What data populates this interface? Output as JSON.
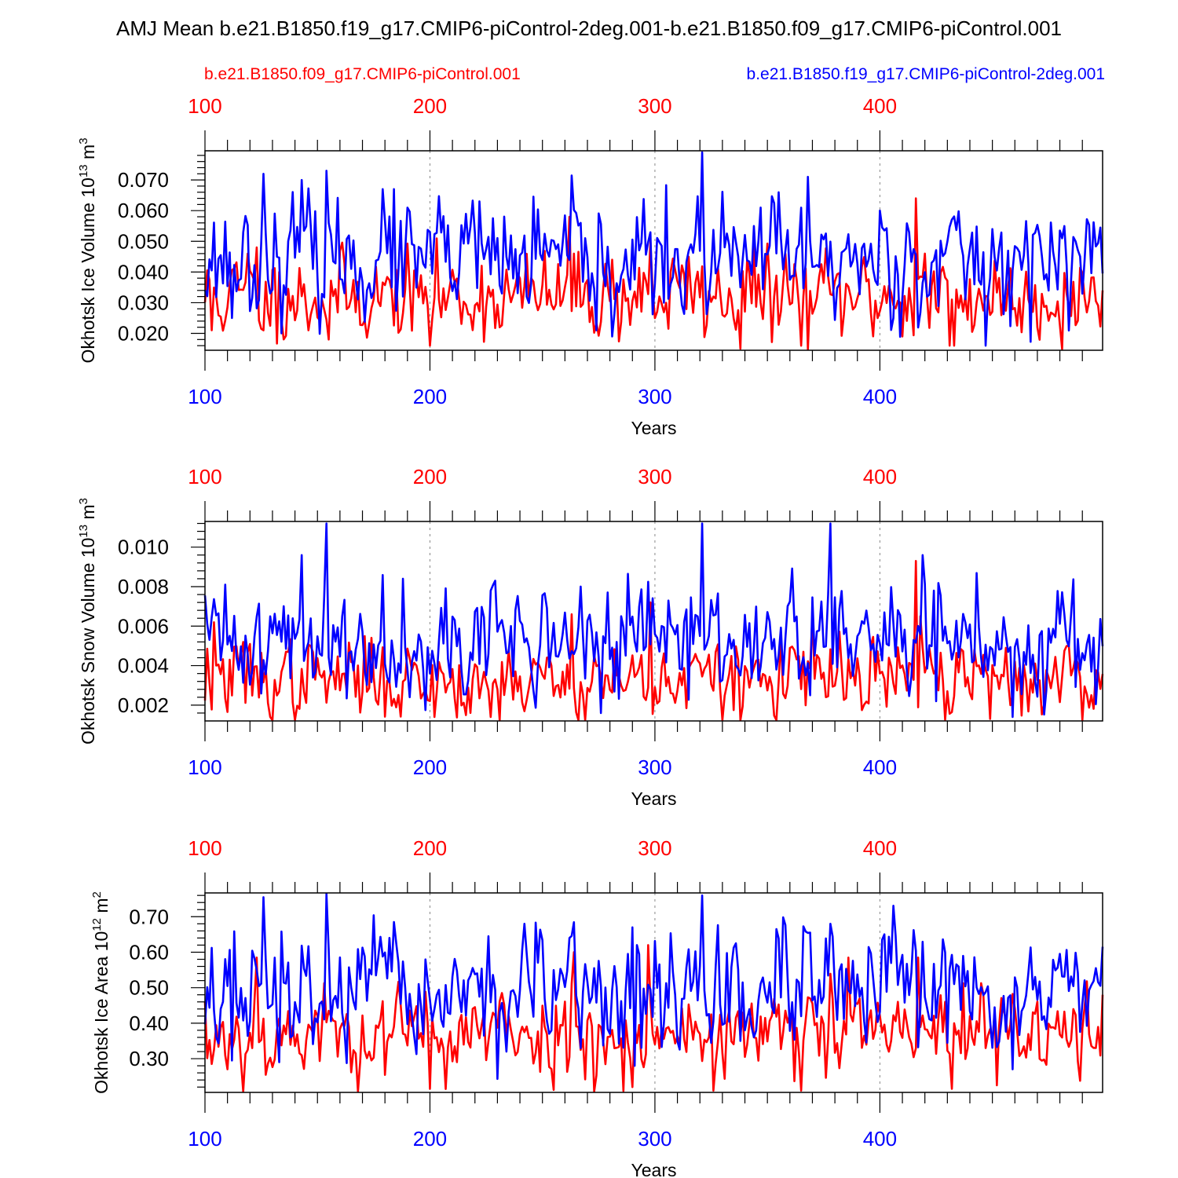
{
  "title": "AMJ Mean b.e21.B1850.f19_g17.CMIP6-piControl-2deg.001-b.e21.B1850.f09_g17.CMIP6-piControl.001",
  "legend": {
    "red_label": "b.e21.B1850.f09_g17.CMIP6-piControl.001",
    "blue_label": "b.e21.B1850.f19_g17.CMIP6-piControl-2deg.001"
  },
  "colors": {
    "red": "#ff0000",
    "blue": "#0000ff",
    "axis": "#000000",
    "grid": "#888888"
  },
  "xlabel": "Years",
  "chart_data": [
    {
      "type": "line",
      "id": "ice-volume",
      "ylabel_main": "Okhotsk Ice Volume 10",
      "ylabel_exp": "13",
      "ylabel_unit": " m",
      "ylabel_unit_exp": "3",
      "xlabel": "Years",
      "xlim": [
        100,
        499
      ],
      "ylim": [
        0.0145,
        0.0795
      ],
      "xticks": [
        100,
        200,
        300,
        400
      ],
      "yticks": [
        0.02,
        0.03,
        0.04,
        0.05,
        0.06,
        0.07
      ],
      "ytick_labels": [
        "0.020",
        "0.030",
        "0.040",
        "0.050",
        "0.060",
        "0.070"
      ],
      "series": [
        {
          "name": "b.e21.B1850.f09_g17.CMIP6-piControl.001",
          "color": "red",
          "base": 0.032,
          "sd": 0.0072,
          "seed": 11,
          "peaks": [
            [
              119,
              0.046
            ],
            [
              123,
              0.048
            ],
            [
              133,
              0.04
            ],
            [
              262,
              0.058
            ],
            [
              281,
              0.044
            ],
            [
              298,
              0.05
            ],
            [
              315,
              0.045
            ],
            [
              341,
              0.044
            ],
            [
              358,
              0.046
            ],
            [
              416,
              0.064
            ],
            [
              420,
              0.046
            ]
          ],
          "troughs": [
            [
              103,
              0.021
            ],
            [
              126,
              0.021
            ],
            [
              155,
              0.018
            ],
            [
              200,
              0.016
            ],
            [
              338,
              0.015
            ],
            [
              365,
              0.016
            ],
            [
              431,
              0.016
            ],
            [
              433,
              0.016
            ]
          ]
        },
        {
          "name": "b.e21.B1850.f19_g17.CMIP6-piControl-2deg.001",
          "color": "blue",
          "base": 0.044,
          "sd": 0.0092,
          "seed": 23,
          "peaks": [
            [
              126,
              0.072
            ],
            [
              143,
              0.07
            ],
            [
              154,
              0.073
            ],
            [
              184,
              0.067
            ],
            [
              222,
              0.063
            ],
            [
              321,
              0.079
            ],
            [
              347,
              0.061
            ],
            [
              355,
              0.066
            ],
            [
              368,
              0.071
            ],
            [
              400,
              0.06
            ]
          ],
          "troughs": [
            [
              112,
              0.025
            ],
            [
              188,
              0.032
            ],
            [
              232,
              0.033
            ],
            [
              274,
              0.021
            ],
            [
              281,
              0.019
            ],
            [
              304,
              0.03
            ],
            [
              338,
              0.035
            ],
            [
              447,
              0.016
            ]
          ]
        }
      ]
    },
    {
      "type": "line",
      "id": "snow-volume",
      "ylabel_main": "Okhotsk Snow Volume 10",
      "ylabel_exp": "13",
      "ylabel_unit": " m",
      "ylabel_unit_exp": "3",
      "xlabel": "Years",
      "xlim": [
        100,
        499
      ],
      "ylim": [
        0.0012,
        0.0113
      ],
      "xticks": [
        100,
        200,
        300,
        400
      ],
      "yticks": [
        0.002,
        0.004,
        0.006,
        0.008,
        0.01
      ],
      "ytick_labels": [
        "0.002",
        "0.004",
        "0.006",
        "0.008",
        "0.010"
      ],
      "series": [
        {
          "name": "b.e21.B1850.f09_g17.CMIP6-piControl.001",
          "color": "red",
          "base": 0.0033,
          "sd": 0.001,
          "seed": 37,
          "peaks": [
            [
              104,
              0.0062
            ],
            [
              117,
              0.0052
            ],
            [
              263,
              0.0066
            ],
            [
              298,
              0.0072
            ],
            [
              370,
              0.0066
            ],
            [
              416,
              0.0093
            ],
            [
              418,
              0.0065
            ]
          ],
          "troughs": [
            [
              129,
              0.0014
            ],
            [
              202,
              0.0014
            ],
            [
              227,
              0.0014
            ],
            [
              338,
              0.0012
            ],
            [
              449,
              0.0013
            ]
          ]
        },
        {
          "name": "b.e21.B1850.f19_g17.CMIP6-piControl-2deg.001",
          "color": "blue",
          "base": 0.0053,
          "sd": 0.0014,
          "seed": 41,
          "peaks": [
            [
              109,
              0.0081
            ],
            [
              143,
              0.0096
            ],
            [
              154,
              0.0112
            ],
            [
              188,
              0.0084
            ],
            [
              229,
              0.0083
            ],
            [
              321,
              0.0112
            ],
            [
              378,
              0.0112
            ],
            [
              419,
              0.0096
            ]
          ],
          "troughs": [
            [
              148,
              0.0034
            ],
            [
              276,
              0.0016
            ],
            [
              369,
              0.0025
            ],
            [
              425,
              0.0022
            ],
            [
              459,
              0.0014
            ]
          ]
        }
      ]
    },
    {
      "type": "line",
      "id": "ice-area",
      "ylabel_main": "Okhotsk Ice Area 10",
      "ylabel_exp": "12",
      "ylabel_unit": " m",
      "ylabel_unit_exp": "2",
      "xlabel": "Years",
      "xlim": [
        100,
        499
      ],
      "ylim": [
        0.205,
        0.767
      ],
      "xticks": [
        100,
        200,
        300,
        400
      ],
      "yticks": [
        0.3,
        0.4,
        0.5,
        0.6,
        0.7
      ],
      "ytick_labels": [
        "0.30",
        "0.40",
        "0.50",
        "0.60",
        "0.70"
      ],
      "series": [
        {
          "name": "b.e21.B1850.f09_g17.CMIP6-piControl.001",
          "color": "red",
          "base": 0.37,
          "sd": 0.065,
          "seed": 53,
          "peaks": [
            [
              123,
              0.585
            ],
            [
              264,
              0.6
            ],
            [
              297,
              0.62
            ],
            [
              386,
              0.585
            ],
            [
              417,
              0.585
            ],
            [
              499,
              0.48
            ]
          ],
          "troughs": [
            [
              103,
              0.285
            ],
            [
              200,
              0.215
            ],
            [
              290,
              0.22
            ],
            [
              326,
              0.21
            ],
            [
              365,
              0.21
            ],
            [
              432,
              0.215
            ],
            [
              452,
              0.225
            ]
          ]
        },
        {
          "name": "b.e21.B1850.f19_g17.CMIP6-piControl-2deg.001",
          "color": "blue",
          "base": 0.48,
          "sd": 0.085,
          "seed": 67,
          "peaks": [
            [
              126,
              0.755
            ],
            [
              154,
              0.767
            ],
            [
              184,
              0.685
            ],
            [
              226,
              0.645
            ],
            [
              321,
              0.76
            ],
            [
              354,
              0.665
            ],
            [
              378,
              0.68
            ]
          ],
          "troughs": [
            [
              112,
              0.295
            ],
            [
              133,
              0.29
            ],
            [
              234,
              0.32
            ],
            [
              291,
              0.28
            ],
            [
              338,
              0.35
            ],
            [
              459,
              0.27
            ]
          ]
        }
      ]
    }
  ]
}
